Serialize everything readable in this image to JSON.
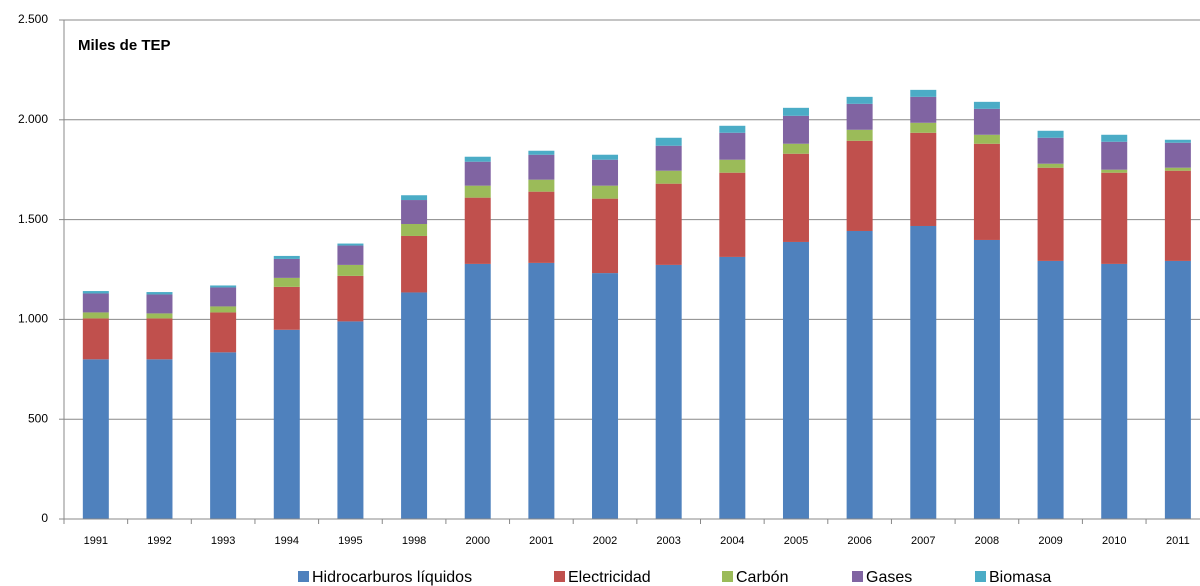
{
  "chart_data": {
    "type": "stacked_bar",
    "title": "Miles de TEP",
    "categories": [
      "1991",
      "1992",
      "1993",
      "1994",
      "1995",
      "1998",
      "2000",
      "2001",
      "2002",
      "2003",
      "2004",
      "2005",
      "2006",
      "2007",
      "2008",
      "2009",
      "2010",
      "2011"
    ],
    "series": [
      {
        "name": "Hidrocarburos líquidos",
        "color": "#4f81bd",
        "values": [
          800,
          800,
          835,
          948,
          990,
          1135,
          1278,
          1283,
          1232,
          1273,
          1313,
          1388,
          1443,
          1468,
          1398,
          1293,
          1278,
          1293
        ]
      },
      {
        "name": "Electricidad",
        "color": "#c0504d",
        "values": [
          205,
          205,
          200,
          215,
          228,
          283,
          332,
          357,
          373,
          407,
          422,
          442,
          452,
          467,
          482,
          467,
          457,
          452
        ]
      },
      {
        "name": "Carbón",
        "color": "#9bbb59",
        "values": [
          30,
          25,
          30,
          45,
          55,
          60,
          60,
          60,
          65,
          65,
          65,
          50,
          55,
          50,
          45,
          20,
          15,
          15
        ]
      },
      {
        "name": "Gases",
        "color": "#8064a2",
        "values": [
          95,
          95,
          95,
          95,
          97,
          120,
          120,
          125,
          130,
          125,
          135,
          140,
          130,
          130,
          130,
          130,
          140,
          125
        ]
      },
      {
        "name": "Biomasa",
        "color": "#4bacc6",
        "values": [
          12,
          12,
          10,
          15,
          10,
          24,
          25,
          20,
          25,
          40,
          35,
          40,
          35,
          35,
          35,
          35,
          35,
          15
        ]
      }
    ],
    "ylim": [
      0,
      2500
    ],
    "yticks": [
      0,
      500,
      {
        "value": 1000,
        "label": "1.000"
      },
      {
        "value": 1500,
        "label": "1.500"
      },
      {
        "value": 2000,
        "label": "2.000"
      },
      {
        "value": 2500,
        "label": "2.500"
      }
    ],
    "grid": true,
    "legend": "bottom"
  }
}
